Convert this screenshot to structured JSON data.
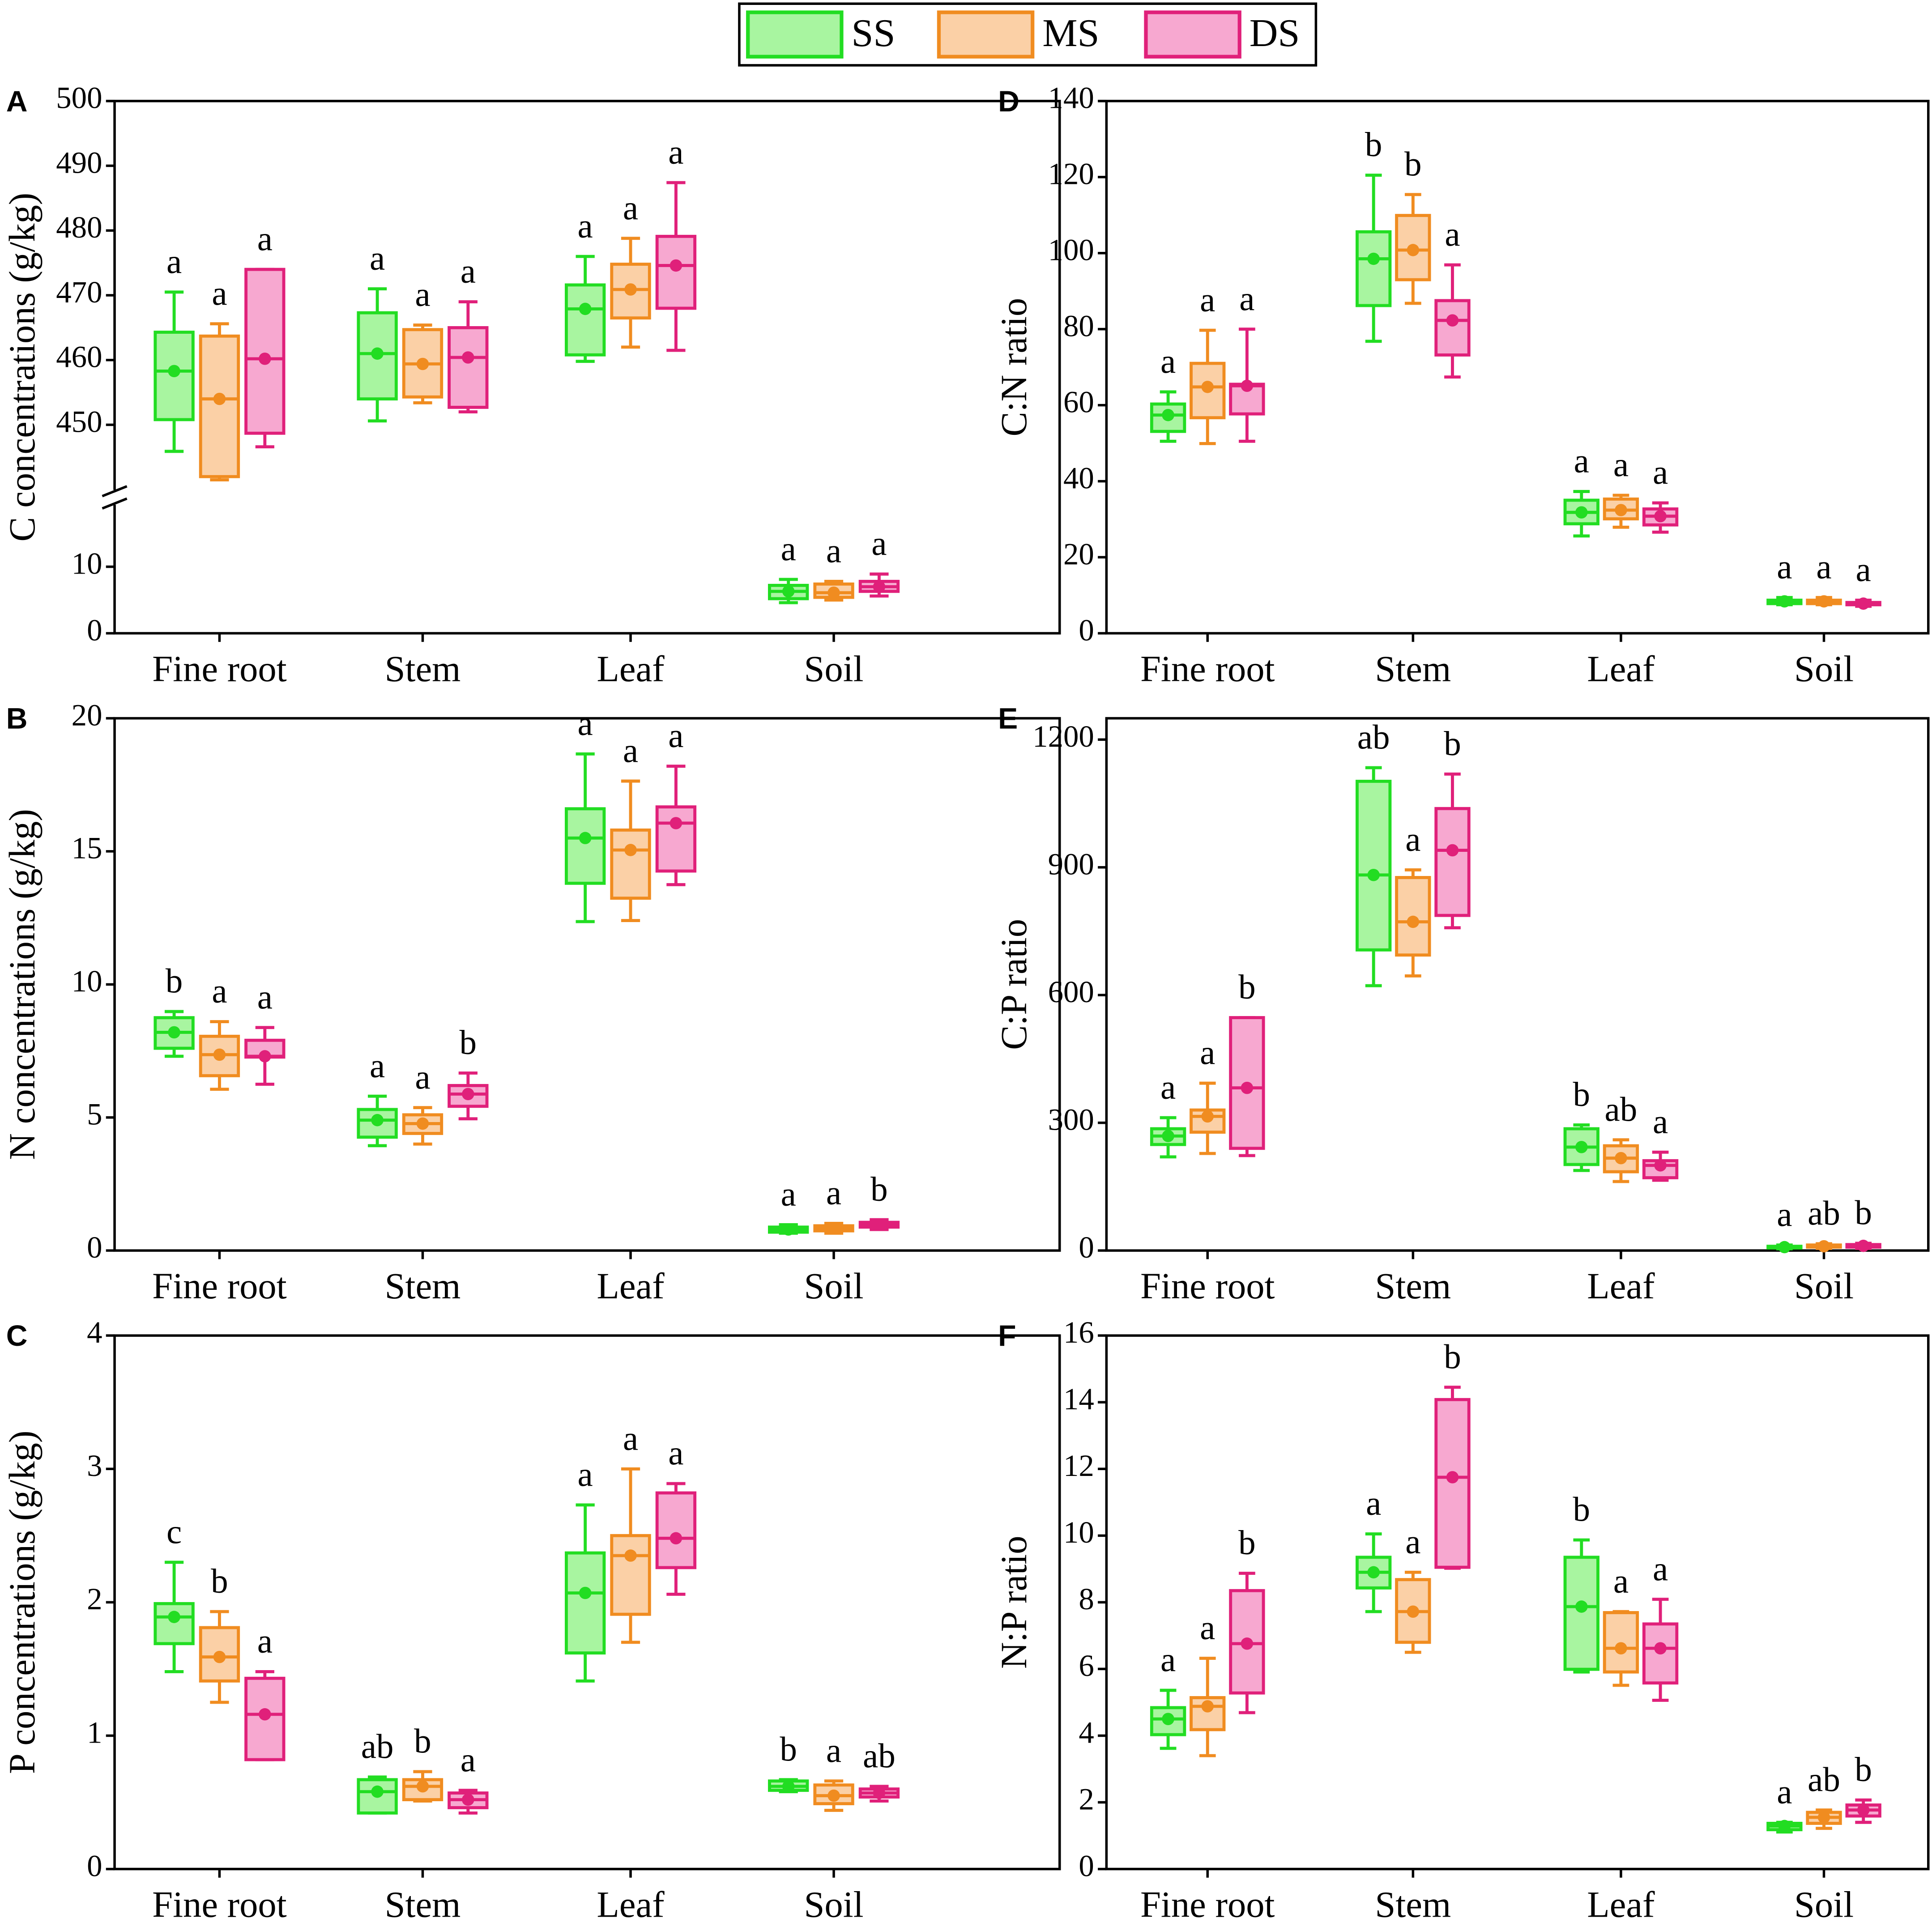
{
  "legend": [
    {
      "name": "SS",
      "color": "#22dd22",
      "fill": "#a8f5a0"
    },
    {
      "name": "MS",
      "color": "#f08c20",
      "fill": "#fbd0a6"
    },
    {
      "name": "DS",
      "color": "#e0207a",
      "fill": "#f7a8d0"
    }
  ],
  "chart_data": [
    {
      "type": "box",
      "label": "A",
      "ylabel": "C concentrations (g/kg)",
      "categories": [
        "Fine root",
        "Stem",
        "Leaf",
        "Soil"
      ],
      "ylim": [
        0,
        500
      ],
      "ybreak": [
        20,
        440
      ],
      "yticks": [
        0,
        10,
        450,
        460,
        470,
        480,
        490,
        500
      ],
      "series": [
        {
          "boxes": [
            {
              "min": 445.9,
              "q1": 450.8,
              "median": 458.3,
              "q3": 464.3,
              "max": 470.5
            },
            {
              "min": 450.6,
              "q1": 454,
              "median": 461,
              "q3": 467.3,
              "max": 471
            },
            {
              "min": 459.8,
              "q1": 460.8,
              "median": 467.9,
              "q3": 471.6,
              "max": 476
            },
            {
              "min": 4.6,
              "q1": 5.2,
              "median": 6.3,
              "q3": 7.2,
              "max": 8.1
            }
          ],
          "letters": [
            "a",
            "a",
            "a",
            "a"
          ]
        },
        {
          "boxes": [
            {
              "min": 441.5,
              "q1": 442,
              "median": 454,
              "q3": 463.7,
              "max": 465.6
            },
            {
              "min": 453.4,
              "q1": 454.3,
              "median": 459.4,
              "q3": 464.7,
              "max": 465.4
            },
            {
              "min": 462,
              "q1": 466.5,
              "median": 470.9,
              "q3": 474.8,
              "max": 478.8
            },
            {
              "min": 5,
              "q1": 5.4,
              "median": 6.1,
              "q3": 7.4,
              "max": 7.8
            }
          ],
          "letters": [
            "a",
            "a",
            "a",
            "a"
          ]
        },
        {
          "boxes": [
            {
              "min": 446.6,
              "q1": 448.7,
              "median": 460.2,
              "q3": 474,
              "max": 474
            },
            {
              "min": 452,
              "q1": 452.7,
              "median": 460.4,
              "q3": 465,
              "max": 469
            },
            {
              "min": 461.5,
              "q1": 468,
              "median": 474.6,
              "q3": 479.1,
              "max": 487.4
            },
            {
              "min": 5.6,
              "q1": 6.3,
              "median": 7,
              "q3": 7.8,
              "max": 8.9
            }
          ],
          "letters": [
            "a",
            "a",
            "a",
            "a"
          ]
        }
      ]
    },
    {
      "type": "box",
      "label": "B",
      "ylabel": "N concentrations (g/kg)",
      "categories": [
        "Fine root",
        "Stem",
        "Leaf",
        "Soil"
      ],
      "ylim": [
        0,
        20
      ],
      "yticks": [
        0,
        5,
        10,
        15,
        20
      ],
      "series": [
        {
          "boxes": [
            {
              "min": 7.3,
              "q1": 7.6,
              "median": 8.2,
              "q3": 8.75,
              "max": 8.98
            },
            {
              "min": 3.94,
              "q1": 4.26,
              "median": 4.9,
              "q3": 5.3,
              "max": 5.8
            },
            {
              "min": 12.36,
              "q1": 13.8,
              "median": 15.5,
              "q3": 16.6,
              "max": 18.66
            },
            {
              "min": 0.65,
              "q1": 0.69,
              "median": 0.79,
              "q3": 0.88,
              "max": 0.97
            }
          ],
          "letters": [
            "b",
            "a",
            "a",
            "a"
          ]
        },
        {
          "boxes": [
            {
              "min": 6.06,
              "q1": 6.57,
              "median": 7.36,
              "q3": 8.05,
              "max": 8.6
            },
            {
              "min": 4,
              "q1": 4.4,
              "median": 4.77,
              "q3": 5.1,
              "max": 5.37
            },
            {
              "min": 12.4,
              "q1": 13.24,
              "median": 15.05,
              "q3": 15.8,
              "max": 17.64
            },
            {
              "min": 0.65,
              "q1": 0.74,
              "median": 0.83,
              "q3": 0.93,
              "max": 1.02
            }
          ],
          "letters": [
            "a",
            "a",
            "a",
            "a"
          ]
        },
        {
          "boxes": [
            {
              "min": 6.25,
              "q1": 7.27,
              "median": 7.3,
              "q3": 7.9,
              "max": 8.38
            },
            {
              "min": 4.95,
              "q1": 5.42,
              "median": 5.88,
              "q3": 6.2,
              "max": 6.67
            },
            {
              "min": 13.75,
              "q1": 14.26,
              "median": 16.06,
              "q3": 16.67,
              "max": 18.2
            },
            {
              "min": 0.79,
              "q1": 0.88,
              "median": 0.97,
              "q3": 1.06,
              "max": 1.16
            }
          ],
          "letters": [
            "a",
            "b",
            "a",
            "b"
          ]
        }
      ]
    },
    {
      "type": "box",
      "label": "C",
      "ylabel": "P concentrations (g/kg)",
      "categories": [
        "Fine root",
        "Stem",
        "Leaf",
        "Soil"
      ],
      "ylim": [
        0,
        4
      ],
      "yticks": [
        0,
        1,
        2,
        3,
        4
      ],
      "series": [
        {
          "boxes": [
            {
              "min": 1.48,
              "q1": 1.69,
              "median": 1.89,
              "q3": 1.99,
              "max": 2.3
            },
            {
              "min": 0.42,
              "q1": 0.42,
              "median": 0.58,
              "q3": 0.67,
              "max": 0.69
            },
            {
              "min": 1.41,
              "q1": 1.62,
              "median": 2.07,
              "q3": 2.37,
              "max": 2.73
            },
            {
              "min": 0.58,
              "q1": 0.59,
              "median": 0.62,
              "q3": 0.66,
              "max": 0.67
            }
          ],
          "letters": [
            "c",
            "ab",
            "a",
            "b"
          ]
        },
        {
          "boxes": [
            {
              "min": 1.25,
              "q1": 1.41,
              "median": 1.59,
              "q3": 1.81,
              "max": 1.93
            },
            {
              "min": 0.51,
              "q1": 0.52,
              "median": 0.62,
              "q3": 0.67,
              "max": 0.73
            },
            {
              "min": 1.7,
              "q1": 1.91,
              "median": 2.35,
              "q3": 2.5,
              "max": 3
            },
            {
              "min": 0.44,
              "q1": 0.49,
              "median": 0.55,
              "q3": 0.63,
              "max": 0.66
            }
          ],
          "letters": [
            "b",
            "b",
            "a",
            "a"
          ]
        },
        {
          "boxes": [
            {
              "min": 0.82,
              "q1": 0.82,
              "median": 1.16,
              "q3": 1.43,
              "max": 1.48
            },
            {
              "min": 0.42,
              "q1": 0.46,
              "median": 0.52,
              "q3": 0.57,
              "max": 0.59
            },
            {
              "min": 2.06,
              "q1": 2.26,
              "median": 2.48,
              "q3": 2.82,
              "max": 2.89
            },
            {
              "min": 0.51,
              "q1": 0.54,
              "median": 0.57,
              "q3": 0.6,
              "max": 0.62
            }
          ],
          "letters": [
            "a",
            "a",
            "a",
            "ab"
          ]
        }
      ]
    },
    {
      "type": "box",
      "label": "D",
      "ylabel": "C:N ratio",
      "categories": [
        "Fine root",
        "Stem",
        "Leaf",
        "Soil"
      ],
      "ylim": [
        0,
        140
      ],
      "yticks": [
        0,
        20,
        40,
        60,
        80,
        100,
        120,
        140
      ],
      "series": [
        {
          "boxes": [
            {
              "min": 50.5,
              "q1": 53.1,
              "median": 57.4,
              "q3": 60.3,
              "max": 63.5
            },
            {
              "min": 76.8,
              "q1": 86.2,
              "median": 98.5,
              "q3": 105.6,
              "max": 120.5
            },
            {
              "min": 25.6,
              "q1": 28.8,
              "median": 31.8,
              "q3": 35,
              "max": 37.3
            },
            {
              "min": 7.5,
              "q1": 7.8,
              "median": 8.4,
              "q3": 8.7,
              "max": 9.4
            }
          ],
          "letters": [
            "a",
            "b",
            "a",
            "a"
          ]
        },
        {
          "boxes": [
            {
              "min": 49.9,
              "q1": 56.7,
              "median": 64.8,
              "q3": 71,
              "max": 79.7
            },
            {
              "min": 86.8,
              "q1": 93,
              "median": 100.8,
              "q3": 109.9,
              "max": 115.4
            },
            {
              "min": 27.9,
              "q1": 30.1,
              "median": 32.4,
              "q3": 35.3,
              "max": 36.3
            },
            {
              "min": 7.5,
              "q1": 7.8,
              "median": 8.4,
              "q3": 8.7,
              "max": 9.4
            }
          ],
          "letters": [
            "a",
            "b",
            "a",
            "a"
          ]
        },
        {
          "boxes": [
            {
              "min": 50.5,
              "q1": 57.7,
              "median": 65.1,
              "q3": 65.5,
              "max": 80
            },
            {
              "min": 67.4,
              "q1": 73.2,
              "median": 82.3,
              "q3": 87.5,
              "max": 96.9
            },
            {
              "min": 26.6,
              "q1": 28.5,
              "median": 30.8,
              "q3": 32.7,
              "max": 34.3
            },
            {
              "min": 7.1,
              "q1": 7.5,
              "median": 7.8,
              "q3": 8.1,
              "max": 8.7
            }
          ],
          "letters": [
            "a",
            "a",
            "a",
            "a"
          ]
        }
      ]
    },
    {
      "type": "box",
      "label": "E",
      "ylabel": "C:P ratio",
      "categories": [
        "Fine root",
        "Stem",
        "Leaf",
        "Soil"
      ],
      "ylim": [
        0,
        1250
      ],
      "yticks": [
        0,
        300,
        600,
        900,
        1200
      ],
      "series": [
        {
          "boxes": [
            {
              "min": 220,
              "q1": 249,
              "median": 269,
              "q3": 286,
              "max": 312
            },
            {
              "min": 622,
              "q1": 706,
              "median": 882,
              "q3": 1102,
              "max": 1134
            },
            {
              "min": 188,
              "q1": 202,
              "median": 243,
              "q3": 286,
              "max": 295
            },
            {
              "min": 4,
              "q1": 6,
              "median": 8,
              "q3": 10,
              "max": 13
            }
          ],
          "letters": [
            "a",
            "ab",
            "b",
            "a"
          ]
        },
        {
          "boxes": [
            {
              "min": 228,
              "q1": 278,
              "median": 315,
              "q3": 330,
              "max": 393
            },
            {
              "min": 645,
              "q1": 694,
              "median": 772,
              "q3": 876,
              "max": 894
            },
            {
              "min": 162,
              "q1": 185,
              "median": 217,
              "q3": 246,
              "max": 260
            },
            {
              "min": 5,
              "q1": 8,
              "median": 10,
              "q3": 13,
              "max": 16
            }
          ],
          "letters": [
            "a",
            "a",
            "ab",
            "ab"
          ]
        },
        {
          "boxes": [
            {
              "min": 223,
              "q1": 240,
              "median": 382,
              "q3": 547,
              "max": 547
            },
            {
              "min": 758,
              "q1": 787,
              "median": 940,
              "q3": 1038,
              "max": 1119
            },
            {
              "min": 165,
              "q1": 171,
              "median": 200,
              "q3": 211,
              "max": 231
            },
            {
              "min": 5,
              "q1": 8,
              "median": 11,
              "q3": 14,
              "max": 17
            }
          ],
          "letters": [
            "b",
            "b",
            "a",
            "b"
          ]
        }
      ]
    },
    {
      "type": "box",
      "label": "F",
      "ylabel": "N:P ratio",
      "categories": [
        "Fine root",
        "Stem",
        "Leaf",
        "Soil"
      ],
      "ylim": [
        0,
        16
      ],
      "yticks": [
        0,
        2,
        4,
        6,
        8,
        10,
        12,
        14,
        16
      ],
      "series": [
        {
          "boxes": [
            {
              "min": 3.62,
              "q1": 4.03,
              "median": 4.5,
              "q3": 4.84,
              "max": 5.36
            },
            {
              "min": 7.72,
              "q1": 8.43,
              "median": 8.9,
              "q3": 9.35,
              "max": 10.05
            },
            {
              "min": 5.91,
              "q1": 5.99,
              "median": 7.87,
              "q3": 9.35,
              "max": 9.87
            },
            {
              "min": 1.11,
              "q1": 1.18,
              "median": 1.29,
              "q3": 1.37,
              "max": 1.4
            }
          ],
          "letters": [
            "a",
            "a",
            "b",
            "a"
          ]
        },
        {
          "boxes": [
            {
              "min": 3.4,
              "q1": 4.18,
              "median": 4.88,
              "q3": 5.14,
              "max": 6.32
            },
            {
              "min": 6.5,
              "q1": 6.8,
              "median": 7.72,
              "q3": 8.68,
              "max": 8.9
            },
            {
              "min": 5.51,
              "q1": 5.91,
              "median": 6.62,
              "q3": 7.69,
              "max": 7.72
            },
            {
              "min": 1.22,
              "q1": 1.37,
              "median": 1.55,
              "q3": 1.7,
              "max": 1.77
            }
          ],
          "letters": [
            "a",
            "a",
            "a",
            "ab"
          ]
        },
        {
          "boxes": [
            {
              "min": 4.69,
              "q1": 5.28,
              "median": 6.76,
              "q3": 8.35,
              "max": 8.87
            },
            {
              "min": 9.02,
              "q1": 9.05,
              "median": 11.75,
              "q3": 14.08,
              "max": 14.45
            },
            {
              "min": 5.06,
              "q1": 5.58,
              "median": 6.62,
              "q3": 7.35,
              "max": 8.09
            },
            {
              "min": 1.4,
              "q1": 1.59,
              "median": 1.77,
              "q3": 1.92,
              "max": 2.07
            }
          ],
          "letters": [
            "b",
            "b",
            "a",
            "b"
          ]
        }
      ]
    }
  ]
}
